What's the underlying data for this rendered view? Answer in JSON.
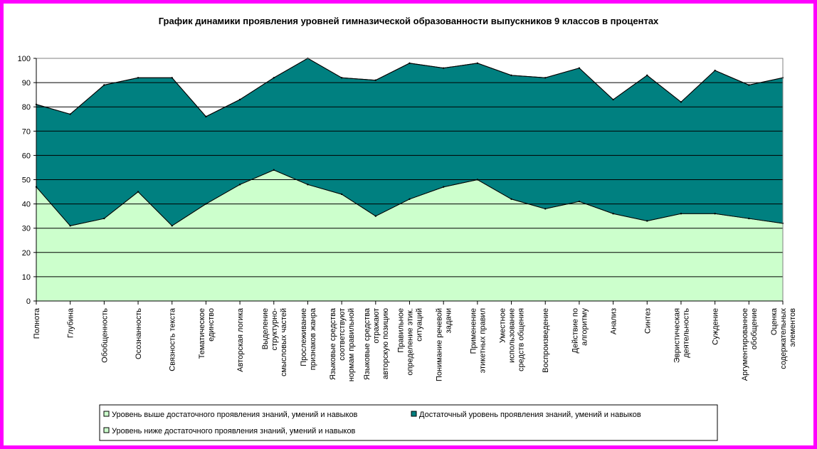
{
  "chart_data": {
    "type": "area",
    "title": "График динамики проявления уровней гимназической образованности выпускников 9 классов в процентах",
    "xlabel": "",
    "ylabel": "",
    "ylim": [
      0,
      100
    ],
    "yticks": [
      0,
      10,
      20,
      30,
      40,
      50,
      60,
      70,
      80,
      90,
      100
    ],
    "grid": true,
    "stacked": true,
    "legend_position": "bottom",
    "categories": [
      "Полнота",
      "Глубина",
      "Обобщенность",
      "Осознанность",
      "Связность текста",
      "Тематическое единство",
      "Авторская логика",
      "Выделение структурно-смысловых частей",
      "Прослеживание признаков жанра",
      "Языковые средства соответствуют нормам правильной",
      "Языковые средства отражают авторскую позицию",
      "Правильное определение этик. ситуаций",
      "Понимание речевой задачи",
      "Применение этикетных правил",
      "Уместное использование средств общения",
      "Воспроизведение",
      "Действие по алгоритму",
      "Анализ",
      "Синтез",
      "Эвристическая деятельность",
      "Суждение",
      "Аргументированное обобщение",
      "Оценка содержательных элементов"
    ],
    "series": [
      {
        "name": "Уровень ниже достаточного проявления знаний, умений и навыков",
        "color": "#ccffcc",
        "values": [
          47,
          31,
          34,
          45,
          31,
          40,
          48,
          54,
          48,
          44,
          35,
          42,
          47,
          50,
          42,
          38,
          41,
          36,
          33,
          36,
          36,
          34,
          32
        ]
      },
      {
        "name": "Достаточный уровень проявления знаний, умений и навыков",
        "color": "#008080",
        "values": [
          34,
          46,
          55,
          47,
          61,
          36,
          35,
          38,
          52,
          48,
          56,
          56,
          49,
          48,
          51,
          54,
          55,
          47,
          60,
          46,
          59,
          55,
          60
        ]
      },
      {
        "name": "Уровень выше достаточного проявления знаний, умений и навыков",
        "color": "#ccffcc",
        "values": [
          0,
          0,
          0,
          0,
          0,
          0,
          0,
          0,
          0,
          0,
          0,
          0,
          0,
          0,
          0,
          0,
          0,
          0,
          0,
          0,
          0,
          0,
          0
        ]
      }
    ],
    "legend": [
      {
        "label": "Уровень выше достаточного проявления знаний, умений и навыков",
        "color": "#ccffcc"
      },
      {
        "label": "Достаточный уровень проявления знаний, умений и навыков",
        "color": "#008080"
      },
      {
        "label": "Уровень ниже достаточного проявления знаний, умений и навыков",
        "color": "#ccffcc"
      }
    ],
    "category_lines": [
      [
        "Полнота"
      ],
      [
        "Глубина"
      ],
      [
        "Обобщенность"
      ],
      [
        "Осознанность"
      ],
      [
        "Связность текста"
      ],
      [
        "Тематическое",
        "единство"
      ],
      [
        "Авторская логика"
      ],
      [
        "Выделение",
        "структурно-",
        "смысловых частей"
      ],
      [
        "Прослеживание",
        "признаков жанра"
      ],
      [
        "Языковые средства",
        "соответствуют",
        "нормам правильной"
      ],
      [
        "Языковые средства",
        "отражают",
        "авторскую позицию"
      ],
      [
        "Правильное",
        "определение этик.",
        "ситуаций"
      ],
      [
        "Понимание речевой",
        "задачи"
      ],
      [
        "Применение",
        "этикетных правил"
      ],
      [
        "Уместное",
        "использование",
        "средств общения"
      ],
      [
        "Воспроизведение"
      ],
      [
        "Действие по",
        "алгоритму"
      ],
      [
        "Анализ"
      ],
      [
        "Синтез"
      ],
      [
        "Эвристическая",
        "деятельность"
      ],
      [
        "Суждение"
      ],
      [
        "Аргументированное",
        "обобщение"
      ],
      [
        "Оценка",
        "содержательных",
        "элементов"
      ]
    ]
  }
}
